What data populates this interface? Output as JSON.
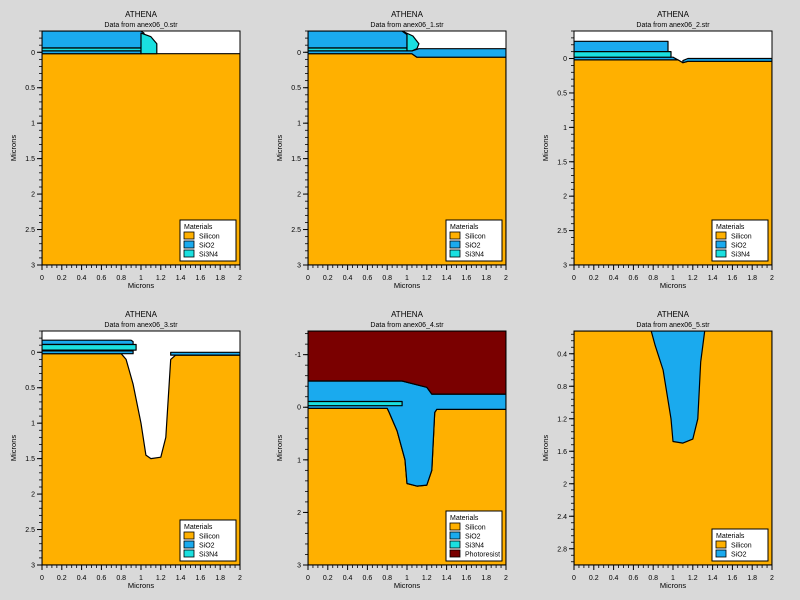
{
  "materials": {
    "Silicon": "#ffb000",
    "SiO2": "#1aaaee",
    "Si3N4": "#1ae0e0",
    "Photoresist": "#7a0000",
    "Air": "#ffffff"
  },
  "chart_data": [
    {
      "type": "area",
      "title": "ATHENA",
      "subtitle": "Data from anex06_0.str",
      "xlabel": "Microns",
      "ylabel": "Microns",
      "xlim": [
        0,
        2
      ],
      "ylim": [
        -0.3,
        3
      ],
      "xticks": [
        0,
        0.2,
        0.4,
        0.6,
        0.8,
        1,
        1.2,
        1.4,
        1.6,
        1.8,
        2
      ],
      "xtick_labels": [
        "0",
        "0.2",
        "0.4",
        "0.6",
        "0.8",
        "1",
        "1.2",
        "1.4",
        "1.6",
        "1.8",
        "2"
      ],
      "yticks": [
        0,
        0.5,
        1,
        1.5,
        2,
        2.5,
        3
      ],
      "ytick_labels": [
        "0",
        "0.5",
        "1",
        "1.5",
        "2",
        "2.5",
        "3"
      ],
      "legend_title": "Materials",
      "legend": [
        "Silicon",
        "SiO2",
        "Si3N4"
      ],
      "legend_position": "bottom-right",
      "regions": [
        {
          "material": "Silicon",
          "points": [
            [
              0,
              0.02
            ],
            [
              2,
              0.02
            ],
            [
              2,
              3
            ],
            [
              0,
              3
            ]
          ]
        },
        {
          "material": "SiO2",
          "points": [
            [
              0,
              -0.02
            ],
            [
              1,
              -0.02
            ],
            [
              1,
              0.02
            ],
            [
              0,
              0.02
            ]
          ]
        },
        {
          "material": "SiO2",
          "points": [
            [
              0,
              -0.3
            ],
            [
              1,
              -0.3
            ],
            [
              1.03,
              -0.27
            ],
            [
              1.03,
              -0.06
            ],
            [
              0,
              -0.06
            ]
          ]
        },
        {
          "material": "Si3N4",
          "points": [
            [
              0,
              -0.06
            ],
            [
              1.03,
              -0.06
            ],
            [
              1.03,
              -0.02
            ],
            [
              0,
              -0.02
            ]
          ]
        },
        {
          "material": "Si3N4",
          "points": [
            [
              1,
              -0.27
            ],
            [
              1.1,
              -0.22
            ],
            [
              1.16,
              -0.12
            ],
            [
              1.16,
              0.02
            ],
            [
              1,
              0.02
            ]
          ]
        }
      ]
    },
    {
      "type": "area",
      "title": "ATHENA",
      "subtitle": "Data from anex06_1.str",
      "xlabel": "Microns",
      "ylabel": "Microns",
      "xlim": [
        0,
        2
      ],
      "ylim": [
        -0.3,
        3
      ],
      "xticks": [
        0,
        0.2,
        0.4,
        0.6,
        0.8,
        1,
        1.2,
        1.4,
        1.6,
        1.8,
        2
      ],
      "xtick_labels": [
        "0",
        "0.2",
        "0.4",
        "0.6",
        "0.8",
        "1",
        "1.2",
        "1.4",
        "1.6",
        "1.8",
        "2"
      ],
      "yticks": [
        0,
        0.5,
        1,
        1.5,
        2,
        2.5,
        3
      ],
      "ytick_labels": [
        "0",
        "0.5",
        "1",
        "1.5",
        "2",
        "2.5",
        "3"
      ],
      "legend_title": "Materials",
      "legend": [
        "Silicon",
        "SiO2",
        "Si3N4"
      ],
      "legend_position": "bottom-right",
      "regions": [
        {
          "material": "Silicon",
          "points": [
            [
              0,
              0.02
            ],
            [
              1.05,
              0.02
            ],
            [
              1.1,
              0.07
            ],
            [
              2,
              0.07
            ],
            [
              2,
              3
            ],
            [
              0,
              3
            ]
          ]
        },
        {
          "material": "SiO2",
          "points": [
            [
              0,
              -0.02
            ],
            [
              1.05,
              -0.02
            ],
            [
              1.12,
              -0.05
            ],
            [
              2,
              -0.05
            ],
            [
              2,
              0.07
            ],
            [
              1.1,
              0.07
            ],
            [
              1.05,
              0.02
            ],
            [
              0,
              0.02
            ]
          ]
        },
        {
          "material": "SiO2",
          "points": [
            [
              0,
              -0.3
            ],
            [
              0.95,
              -0.3
            ],
            [
              1.0,
              -0.25
            ],
            [
              1.0,
              -0.06
            ],
            [
              0,
              -0.06
            ]
          ]
        },
        {
          "material": "Si3N4",
          "points": [
            [
              0,
              -0.06
            ],
            [
              1.0,
              -0.06
            ],
            [
              1.0,
              -0.02
            ],
            [
              0,
              -0.02
            ]
          ]
        },
        {
          "material": "Si3N4",
          "points": [
            [
              0.95,
              -0.3
            ],
            [
              1.06,
              -0.23
            ],
            [
              1.12,
              -0.12
            ],
            [
              1.1,
              -0.05
            ],
            [
              1.05,
              -0.02
            ],
            [
              1.0,
              -0.02
            ],
            [
              1.0,
              -0.25
            ]
          ]
        }
      ]
    },
    {
      "type": "area",
      "title": "ATHENA",
      "subtitle": "Data from anex06_2.str",
      "xlabel": "Microns",
      "ylabel": "Microns",
      "xlim": [
        0,
        2
      ],
      "ylim": [
        -0.4,
        3
      ],
      "xticks": [
        0,
        0.2,
        0.4,
        0.6,
        0.8,
        1,
        1.2,
        1.4,
        1.6,
        1.8,
        2
      ],
      "xtick_labels": [
        "0",
        "0.2",
        "0.4",
        "0.6",
        "0.8",
        "1",
        "1.2",
        "1.4",
        "1.6",
        "1.8",
        "2"
      ],
      "yticks": [
        0,
        0.5,
        1,
        1.5,
        2,
        2.5,
        3
      ],
      "ytick_labels": [
        "0",
        "0.5",
        "1",
        "1.5",
        "2",
        "2.5",
        "3"
      ],
      "legend_title": "Materials",
      "legend": [
        "Silicon",
        "SiO2",
        "Si3N4"
      ],
      "legend_position": "bottom-right",
      "regions": [
        {
          "material": "Silicon",
          "points": [
            [
              0,
              0.02
            ],
            [
              1.05,
              0.02
            ],
            [
              1.1,
              0.06
            ],
            [
              1.15,
              0.04
            ],
            [
              2,
              0.04
            ],
            [
              2,
              3
            ],
            [
              0,
              3
            ]
          ]
        },
        {
          "material": "SiO2",
          "points": [
            [
              0,
              -0.02
            ],
            [
              1.0,
              -0.02
            ],
            [
              1.05,
              0.02
            ],
            [
              0,
              0.02
            ]
          ]
        },
        {
          "material": "SiO2",
          "points": [
            [
              0,
              -0.25
            ],
            [
              0.95,
              -0.25
            ],
            [
              0.95,
              -0.1
            ],
            [
              0,
              -0.1
            ]
          ]
        },
        {
          "material": "SiO2",
          "points": [
            [
              1.1,
              0.03
            ],
            [
              1.15,
              0.0
            ],
            [
              2,
              0.0
            ],
            [
              2,
              0.04
            ],
            [
              1.15,
              0.04
            ],
            [
              1.1,
              0.06
            ]
          ]
        },
        {
          "material": "Si3N4",
          "points": [
            [
              0,
              -0.1
            ],
            [
              0.98,
              -0.1
            ],
            [
              0.98,
              -0.02
            ],
            [
              0,
              -0.02
            ]
          ]
        }
      ]
    },
    {
      "type": "area",
      "title": "ATHENA",
      "subtitle": "Data from anex06_3.str",
      "xlabel": "Microns",
      "ylabel": "Microns",
      "xlim": [
        0,
        2
      ],
      "ylim": [
        -0.3,
        3
      ],
      "xticks": [
        0,
        0.2,
        0.4,
        0.6,
        0.8,
        1,
        1.2,
        1.4,
        1.6,
        1.8,
        2
      ],
      "xtick_labels": [
        "0",
        "0.2",
        "0.4",
        "0.6",
        "0.8",
        "1",
        "1.2",
        "1.4",
        "1.6",
        "1.8",
        "2"
      ],
      "yticks": [
        0,
        0.5,
        1,
        1.5,
        2,
        2.5,
        3
      ],
      "ytick_labels": [
        "0",
        "0.5",
        "1",
        "1.5",
        "2",
        "2.5",
        "3"
      ],
      "legend_title": "Materials",
      "legend": [
        "Silicon",
        "SiO2",
        "Si3N4"
      ],
      "legend_position": "bottom-right",
      "regions": [
        {
          "material": "Silicon",
          "points": [
            [
              0,
              0.02
            ],
            [
              0.8,
              0.02
            ],
            [
              0.85,
              0.1
            ],
            [
              0.92,
              0.45
            ],
            [
              1.0,
              1.0
            ],
            [
              1.05,
              1.45
            ],
            [
              1.1,
              1.5
            ],
            [
              1.2,
              1.48
            ],
            [
              1.25,
              1.2
            ],
            [
              1.3,
              0.1
            ],
            [
              1.35,
              0.04
            ],
            [
              2,
              0.04
            ],
            [
              2,
              3
            ],
            [
              0,
              3
            ]
          ]
        },
        {
          "material": "SiO2",
          "points": [
            [
              0,
              -0.02
            ],
            [
              0.92,
              -0.02
            ],
            [
              0.92,
              0.02
            ],
            [
              0,
              0.02
            ]
          ]
        },
        {
          "material": "SiO2",
          "points": [
            [
              0,
              -0.17
            ],
            [
              0.9,
              -0.17
            ],
            [
              0.92,
              -0.15
            ],
            [
              0.92,
              -0.11
            ],
            [
              0,
              -0.11
            ]
          ]
        },
        {
          "material": "SiO2",
          "points": [
            [
              1.3,
              0.0
            ],
            [
              2,
              0.0
            ],
            [
              2,
              0.04
            ],
            [
              1.3,
              0.04
            ]
          ]
        },
        {
          "material": "Si3N4",
          "points": [
            [
              0,
              -0.11
            ],
            [
              0.95,
              -0.11
            ],
            [
              0.95,
              -0.03
            ],
            [
              0,
              -0.03
            ]
          ]
        }
      ]
    },
    {
      "type": "area",
      "title": "ATHENA",
      "subtitle": "Data from anex06_4.str",
      "xlabel": "Microns",
      "ylabel": "Microns",
      "xlim": [
        0,
        2
      ],
      "ylim": [
        -1.45,
        3
      ],
      "xticks": [
        0,
        0.2,
        0.4,
        0.6,
        0.8,
        1,
        1.2,
        1.4,
        1.6,
        1.8,
        2
      ],
      "xtick_labels": [
        "0",
        "0.2",
        "0.4",
        "0.6",
        "0.8",
        "1",
        "1.2",
        "1.4",
        "1.6",
        "1.8",
        "2"
      ],
      "yticks": [
        -1,
        0,
        1,
        2,
        3
      ],
      "ytick_labels": [
        "-1",
        "0",
        "1",
        "2",
        "3"
      ],
      "legend_title": "Materials",
      "legend": [
        "Silicon",
        "SiO2",
        "Si3N4",
        "Photoresist"
      ],
      "legend_position": "bottom-right",
      "regions": [
        {
          "material": "Silicon",
          "points": [
            [
              0,
              0.02
            ],
            [
              0.8,
              0.02
            ],
            [
              0.82,
              0.1
            ],
            [
              0.9,
              0.45
            ],
            [
              0.98,
              1.0
            ],
            [
              1.0,
              1.45
            ],
            [
              1.1,
              1.5
            ],
            [
              1.2,
              1.48
            ],
            [
              1.25,
              1.2
            ],
            [
              1.28,
              0.1
            ],
            [
              1.3,
              0.04
            ],
            [
              2,
              0.04
            ],
            [
              2,
              3
            ],
            [
              0,
              3
            ]
          ]
        },
        {
          "material": "SiO2",
          "points": [
            [
              0,
              -0.5
            ],
            [
              0.95,
              -0.5
            ],
            [
              1.2,
              -0.38
            ],
            [
              1.25,
              -0.25
            ],
            [
              2,
              -0.25
            ],
            [
              2,
              0.04
            ],
            [
              1.3,
              0.04
            ],
            [
              1.28,
              0.1
            ],
            [
              1.25,
              1.2
            ],
            [
              1.2,
              1.48
            ],
            [
              1.1,
              1.5
            ],
            [
              1.0,
              1.45
            ],
            [
              0.98,
              1.0
            ],
            [
              0.9,
              0.45
            ],
            [
              0.82,
              0.1
            ],
            [
              0.8,
              0.02
            ],
            [
              0,
              0.02
            ]
          ]
        },
        {
          "material": "Photoresist",
          "points": [
            [
              0,
              -1.45
            ],
            [
              2,
              -1.45
            ],
            [
              2,
              -0.25
            ],
            [
              1.25,
              -0.25
            ],
            [
              1.2,
              -0.38
            ],
            [
              0.95,
              -0.5
            ],
            [
              0,
              -0.5
            ]
          ]
        },
        {
          "material": "Si3N4",
          "points": [
            [
              0,
              -0.11
            ],
            [
              0.95,
              -0.11
            ],
            [
              0.95,
              -0.03
            ],
            [
              0,
              -0.03
            ]
          ]
        }
      ]
    },
    {
      "type": "area",
      "title": "ATHENA",
      "subtitle": "Data from anex06_5.str",
      "xlabel": "Microns",
      "ylabel": "Microns",
      "xlim": [
        0,
        2
      ],
      "ylim": [
        0.12,
        3
      ],
      "xticks": [
        0,
        0.2,
        0.4,
        0.6,
        0.8,
        1,
        1.2,
        1.4,
        1.6,
        1.8,
        2
      ],
      "xtick_labels": [
        "0",
        "0.2",
        "0.4",
        "0.6",
        "0.8",
        "1",
        "1.2",
        "1.4",
        "1.6",
        "1.8",
        "2"
      ],
      "yticks": [
        0.4,
        0.8,
        1.2,
        1.6,
        2,
        2.4,
        2.8
      ],
      "ytick_labels": [
        "0.4",
        "0.8",
        "1.2",
        "1.6",
        "2",
        "2.4",
        "2.8"
      ],
      "legend_title": "Materials",
      "legend": [
        "Silicon",
        "SiO2"
      ],
      "legend_position": "bottom-right",
      "regions": [
        {
          "material": "Silicon",
          "points": [
            [
              0,
              0.12
            ],
            [
              2,
              0.12
            ],
            [
              2,
              3
            ],
            [
              0,
              3
            ]
          ]
        },
        {
          "material": "SiO2",
          "points": [
            [
              0.78,
              0.12
            ],
            [
              1.32,
              0.12
            ],
            [
              1.28,
              0.5
            ],
            [
              1.25,
              1.2
            ],
            [
              1.2,
              1.45
            ],
            [
              1.1,
              1.5
            ],
            [
              1.0,
              1.48
            ],
            [
              0.98,
              1.2
            ],
            [
              0.9,
              0.6
            ],
            [
              0.82,
              0.3
            ]
          ]
        }
      ]
    }
  ]
}
